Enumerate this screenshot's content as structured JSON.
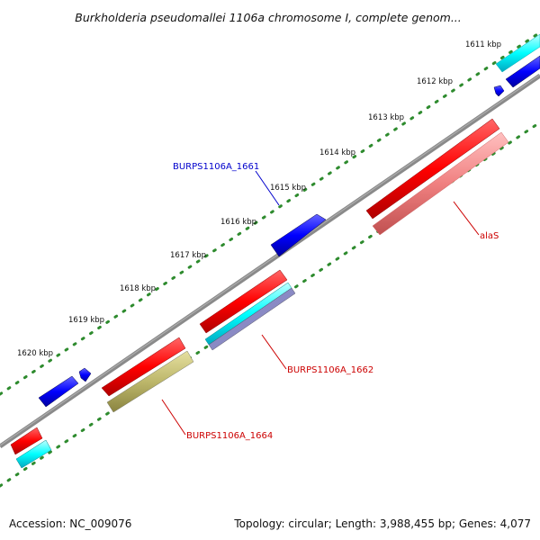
{
  "title": "Burkholderia pseudomallei 1106a chromosome I, complete genom...",
  "ticks": [
    "1611 kbp",
    "1612 kbp",
    "1613 kbp",
    "1614 kbp",
    "1615 kbp",
    "1616 kbp",
    "1617 kbp",
    "1618 kbp",
    "1619 kbp",
    "1620 kbp"
  ],
  "gene_labels": {
    "top": "BURPS1106A_1661",
    "alaS": "alaS",
    "g1662": "BURPS1106A_1662",
    "g1664": "BURPS1106A_1664"
  },
  "footer": {
    "accession": "Accession: NC_009076",
    "topology": "Topology: circular; Length: 3,988,455 bp; Genes: 4,077"
  },
  "colors": {
    "backbone": "#808080",
    "tick_dot": "#2e8b2e",
    "gene_red": "#ff0000",
    "gene_blue": "#0000ff",
    "gene_cyan": "#00ffff",
    "gene_pink": "#f08080",
    "gene_olive": "#bdb76b",
    "gene_purple": "#8080c0",
    "label_blue": "#0000cc",
    "label_red": "#cc0000"
  }
}
